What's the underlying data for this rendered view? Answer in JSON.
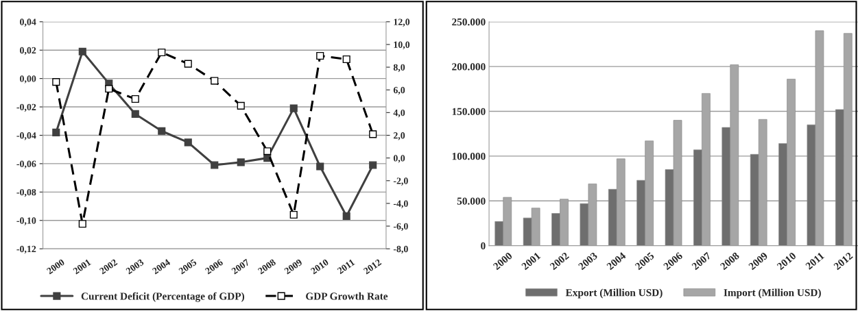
{
  "chart_data": [
    {
      "type": "line",
      "categories": [
        "2000",
        "2001",
        "2002",
        "2003",
        "2004",
        "2005",
        "2006",
        "2007",
        "2008",
        "2009",
        "2010",
        "2011",
        "2012"
      ],
      "series": [
        {
          "name": "Current Deficit (Percentage of GDP)",
          "color": "#404040",
          "line_style": "solid",
          "marker": "square",
          "values": [
            -0.038,
            0.019,
            -0.0035,
            -0.025,
            -0.037,
            -0.045,
            -0.061,
            -0.059,
            -0.056,
            -0.021,
            -0.062,
            -0.097,
            -0.061
          ]
        },
        {
          "name": "GDP Growth Rate",
          "color": "#000000",
          "line_style": "dashed",
          "marker": "square",
          "axis": "y2",
          "values": [
            6.7,
            -5.8,
            6.1,
            5.2,
            9.3,
            8.3,
            6.8,
            4.6,
            0.6,
            -5.0,
            9.0,
            8.7,
            2.1
          ]
        }
      ],
      "ylim": [
        -0.12,
        0.04
      ],
      "yticks": [
        {
          "value": -0.12,
          "label": "-0,12"
        },
        {
          "value": -0.1,
          "label": "-0,10"
        },
        {
          "value": -0.08,
          "label": "-0,08"
        },
        {
          "value": -0.06,
          "label": "-0,06"
        },
        {
          "value": -0.04,
          "label": "-0,04"
        },
        {
          "value": -0.02,
          "label": "-0,02"
        },
        {
          "value": 0,
          "label": "0,00"
        },
        {
          "value": 0.02,
          "label": "0,02"
        },
        {
          "value": 0.04,
          "label": "0,04"
        }
      ],
      "y2lim": [
        -8,
        12
      ],
      "y2ticks": [
        {
          "value": -8,
          "label": "-8,0"
        },
        {
          "value": -6,
          "label": "-6,0"
        },
        {
          "value": -4,
          "label": "-4,0"
        },
        {
          "value": -2,
          "label": "-2,0"
        },
        {
          "value": 0,
          "label": "0,0"
        },
        {
          "value": 2,
          "label": "2,0"
        },
        {
          "value": 4,
          "label": "4,0"
        },
        {
          "value": 6,
          "label": "6,0"
        },
        {
          "value": 8,
          "label": "8,0"
        },
        {
          "value": 10,
          "label": "10,0"
        },
        {
          "value": 12,
          "label": "12,0"
        }
      ],
      "grid": "y",
      "legend": "bottom"
    },
    {
      "type": "bar",
      "categories": [
        "2000",
        "2001",
        "2002",
        "2003",
        "2004",
        "2005",
        "2006",
        "2007",
        "2008",
        "2009",
        "2010",
        "2011",
        "2012"
      ],
      "series": [
        {
          "name": "Export (Million USD)",
          "color": "#6e6e6e",
          "values": [
            27000,
            31000,
            36000,
            47000,
            63000,
            73000,
            85000,
            107000,
            132000,
            102000,
            114000,
            135000,
            152000
          ]
        },
        {
          "name": "Import (Million USD)",
          "color": "#a6a6a6",
          "values": [
            54000,
            42000,
            52000,
            69000,
            97000,
            117000,
            140000,
            170000,
            202000,
            141000,
            186000,
            240000,
            237000
          ]
        }
      ],
      "ylim": [
        0,
        250000
      ],
      "yticks": [
        {
          "value": 0,
          "label": "0"
        },
        {
          "value": 50000,
          "label": "50.000"
        },
        {
          "value": 100000,
          "label": "100.000"
        },
        {
          "value": 150000,
          "label": "150.000"
        },
        {
          "value": 200000,
          "label": "200.000"
        },
        {
          "value": 250000,
          "label": "250.000"
        }
      ],
      "grid": "y",
      "legend": "bottom"
    }
  ]
}
